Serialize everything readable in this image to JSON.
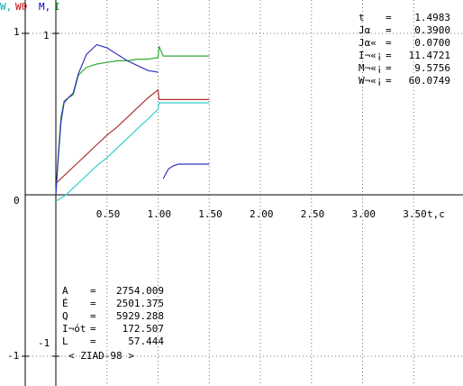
{
  "axis_labels": {
    "left_cyan": "W,",
    "left_red": "W0",
    "right_blue": "M,",
    "right_green": "I",
    "x_unit": "t,c"
  },
  "readout": [
    {
      "label": "t",
      "eq": "=",
      "value": "1.4983"
    },
    {
      "label": "Jα",
      "eq": "=",
      "value": "0.3900"
    },
    {
      "label": "Jα«",
      "eq": "=",
      "value": "0.0700"
    },
    {
      "label": "I¬«¡",
      "eq": "=",
      "value": "11.4721"
    },
    {
      "label": "M¬«¡",
      "eq": "=",
      "value": "9.5756"
    },
    {
      "label": "W¬«¡",
      "eq": "=",
      "value": "60.0749"
    }
  ],
  "summary": [
    {
      "label": "A",
      "eq": "=",
      "value": "2754.009"
    },
    {
      "label": "É",
      "eq": "=",
      "value": "2501.375"
    },
    {
      "label": "Q",
      "eq": "=",
      "value": "5929.288"
    },
    {
      "label": "I¬ót",
      "eq": "=",
      "value": "172.507"
    },
    {
      "label": "L",
      "eq": "=",
      "value": "57.444"
    }
  ],
  "footer": "< ZIAD-98 >",
  "chart_data": {
    "type": "line",
    "x_ticks": [
      "0.50",
      "1.00",
      "1.50",
      "2.00",
      "2.50",
      "3.00",
      "3.50"
    ],
    "y_ticks_left": [
      "1",
      "0",
      "-1"
    ],
    "y_ticks_right": [
      "1",
      "-1"
    ],
    "xlim": [
      0,
      3.75
    ],
    "ylim": [
      -1.0,
      1.0
    ],
    "grid": true,
    "colors": {
      "axis": "#000000",
      "grid": "#777777",
      "cyan": "#33cccc",
      "red": "#b03030",
      "green": "#33aa33",
      "blue": "#3333bb",
      "label_cyan": "#00aaaa",
      "label_red": "#cc0000",
      "label_blue": "#0000cc",
      "label_green": "#009900"
    },
    "series": [
      {
        "color": "cyan",
        "points": [
          [
            0.0,
            -0.04
          ],
          [
            0.1,
            0.0
          ],
          [
            0.2,
            0.06
          ],
          [
            0.3,
            0.12
          ],
          [
            0.4,
            0.18
          ],
          [
            0.5,
            0.23
          ],
          [
            0.6,
            0.29
          ],
          [
            0.7,
            0.35
          ],
          [
            0.8,
            0.41
          ],
          [
            0.9,
            0.47
          ],
          [
            1.0,
            0.53
          ],
          [
            1.01,
            0.57
          ],
          [
            1.1,
            0.57
          ],
          [
            1.2,
            0.57
          ],
          [
            1.3,
            0.57
          ],
          [
            1.4,
            0.57
          ],
          [
            1.5,
            0.57
          ]
        ]
      },
      {
        "color": "red",
        "points": [
          [
            0.0,
            0.07
          ],
          [
            0.1,
            0.13
          ],
          [
            0.2,
            0.19
          ],
          [
            0.3,
            0.25
          ],
          [
            0.4,
            0.31
          ],
          [
            0.5,
            0.37
          ],
          [
            0.6,
            0.42
          ],
          [
            0.7,
            0.48
          ],
          [
            0.8,
            0.54
          ],
          [
            0.9,
            0.6
          ],
          [
            1.0,
            0.65
          ],
          [
            1.01,
            0.59
          ],
          [
            1.1,
            0.59
          ],
          [
            1.2,
            0.59
          ],
          [
            1.3,
            0.59
          ],
          [
            1.4,
            0.59
          ],
          [
            1.5,
            0.59
          ]
        ]
      },
      {
        "color": "green",
        "points": [
          [
            0.0,
            0.0
          ],
          [
            0.02,
            0.22
          ],
          [
            0.05,
            0.48
          ],
          [
            0.08,
            0.58
          ],
          [
            0.12,
            0.6
          ],
          [
            0.17,
            0.62
          ],
          [
            0.22,
            0.74
          ],
          [
            0.3,
            0.79
          ],
          [
            0.4,
            0.81
          ],
          [
            0.5,
            0.82
          ],
          [
            0.6,
            0.83
          ],
          [
            0.7,
            0.83
          ],
          [
            0.8,
            0.84
          ],
          [
            0.9,
            0.84
          ],
          [
            1.0,
            0.85
          ],
          [
            1.01,
            0.92
          ],
          [
            1.05,
            0.86
          ],
          [
            1.1,
            0.86
          ],
          [
            1.2,
            0.86
          ],
          [
            1.3,
            0.86
          ],
          [
            1.4,
            0.86
          ],
          [
            1.5,
            0.86
          ]
        ]
      },
      {
        "color": "blue",
        "points": [
          [
            0.0,
            0.0
          ],
          [
            0.02,
            0.2
          ],
          [
            0.05,
            0.45
          ],
          [
            0.08,
            0.57
          ],
          [
            0.12,
            0.6
          ],
          [
            0.17,
            0.63
          ],
          [
            0.22,
            0.75
          ],
          [
            0.3,
            0.87
          ],
          [
            0.4,
            0.93
          ],
          [
            0.5,
            0.91
          ],
          [
            0.6,
            0.87
          ],
          [
            0.7,
            0.83
          ],
          [
            0.8,
            0.8
          ],
          [
            0.9,
            0.77
          ],
          [
            1.0,
            0.76
          ]
        ]
      },
      {
        "color": "blue",
        "points": [
          [
            1.05,
            0.1
          ],
          [
            1.1,
            0.16
          ],
          [
            1.15,
            0.18
          ],
          [
            1.2,
            0.19
          ],
          [
            1.3,
            0.19
          ],
          [
            1.4,
            0.19
          ],
          [
            1.5,
            0.19
          ]
        ]
      }
    ]
  }
}
